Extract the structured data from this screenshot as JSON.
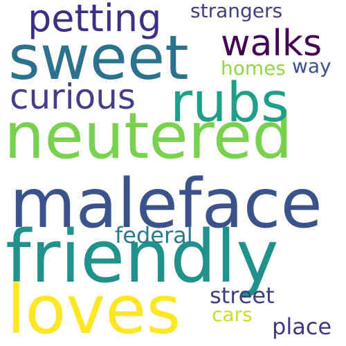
{
  "words": [
    {
      "key": "maleface",
      "text": "maleface",
      "color": "#3b528b"
    },
    {
      "key": "friendly",
      "text": "friendly",
      "color": "#21918c"
    },
    {
      "key": "neutered",
      "text": "neutered",
      "color": "#7ad151"
    },
    {
      "key": "sweet",
      "text": "sweet",
      "color": "#2c728e"
    },
    {
      "key": "loves",
      "text": "loves",
      "color": "#fde725"
    },
    {
      "key": "rubs",
      "text": "rubs",
      "color": "#1f9e89"
    },
    {
      "key": "petting",
      "text": "petting",
      "color": "#3e2f84"
    },
    {
      "key": "curious",
      "text": "curious",
      "color": "#433e85"
    },
    {
      "key": "walks",
      "text": "walks",
      "color": "#440154"
    },
    {
      "key": "strangers",
      "text": "strangers",
      "color": "#3f3f7f"
    },
    {
      "key": "homes",
      "text": "homes",
      "color": "#8fd744"
    },
    {
      "key": "way",
      "text": "way",
      "color": "#3b4f8a"
    },
    {
      "key": "federal",
      "text": "federal",
      "color": "#2a788e"
    },
    {
      "key": "street",
      "text": "street",
      "color": "#3b3f7f"
    },
    {
      "key": "cars",
      "text": "cars",
      "color": "#c8e020"
    },
    {
      "key": "place",
      "text": "place",
      "color": "#46337e"
    }
  ]
}
